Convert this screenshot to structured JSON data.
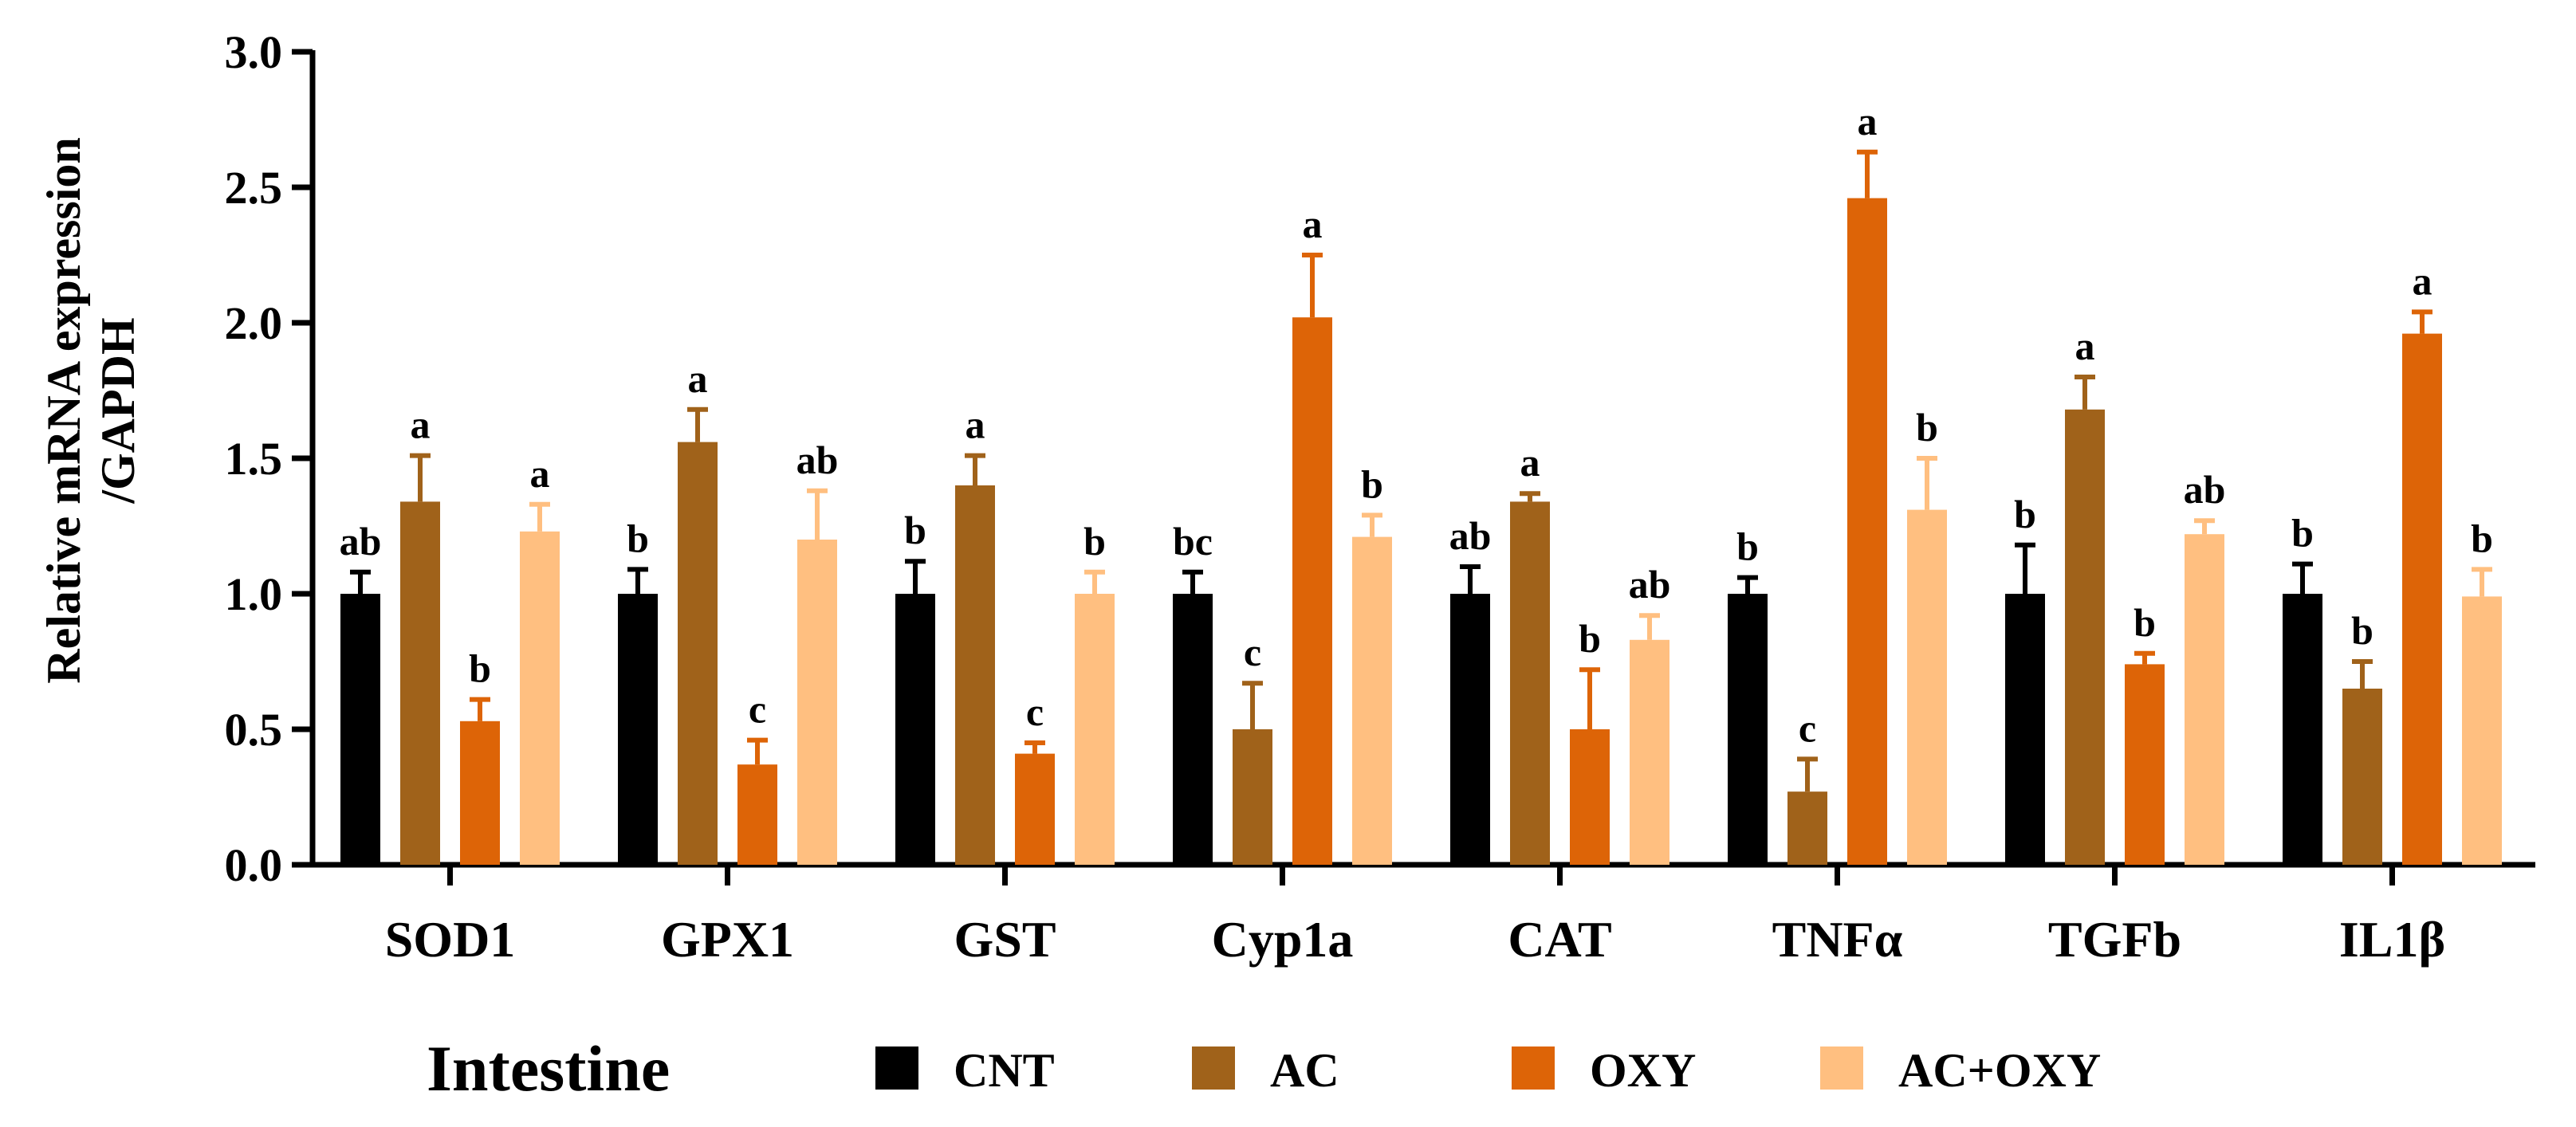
{
  "chart_data": {
    "type": "bar",
    "title": "",
    "ylabel_lines": [
      "Relative mRNA expression",
      "/GAPDH"
    ],
    "xlabel": "",
    "ylim": [
      0,
      3.0
    ],
    "yticks": [
      "0.0",
      "0.5",
      "1.0",
      "1.5",
      "2.0",
      "2.5",
      "3.0"
    ],
    "categories": [
      "SOD1",
      "GPX1",
      "GST",
      "Cyp1a",
      "CAT",
      "TNFα",
      "TGFb",
      "IL1β"
    ],
    "series": [
      {
        "name": "CNT",
        "color": "#000000",
        "values": [
          1.0,
          1.0,
          1.0,
          1.0,
          1.0,
          1.0,
          1.0,
          1.0
        ],
        "errors": [
          0.08,
          0.09,
          0.12,
          0.08,
          0.1,
          0.06,
          0.18,
          0.11
        ],
        "labels": [
          "ab",
          "b",
          "b",
          "bc",
          "ab",
          "b",
          "b",
          "b"
        ]
      },
      {
        "name": "AC",
        "color": "#a0621a",
        "values": [
          1.34,
          1.56,
          1.4,
          0.5,
          1.34,
          0.27,
          1.68,
          0.65
        ],
        "errors": [
          0.17,
          0.12,
          0.11,
          0.17,
          0.03,
          0.12,
          0.12,
          0.1
        ],
        "labels": [
          "a",
          "a",
          "a",
          "c",
          "a",
          "c",
          "a",
          "b"
        ]
      },
      {
        "name": "OXY",
        "color": "#dd6407",
        "values": [
          0.53,
          0.37,
          0.41,
          2.02,
          0.5,
          2.46,
          0.74,
          1.96
        ],
        "errors": [
          0.08,
          0.09,
          0.04,
          0.23,
          0.22,
          0.17,
          0.04,
          0.08
        ],
        "labels": [
          "b",
          "c",
          "c",
          "a",
          "b",
          "a",
          "b",
          "a"
        ]
      },
      {
        "name": "AC+OXY",
        "color": "#ffbf80",
        "values": [
          1.23,
          1.2,
          1.0,
          1.21,
          0.83,
          1.31,
          1.22,
          0.99
        ],
        "errors": [
          0.1,
          0.18,
          0.08,
          0.08,
          0.09,
          0.19,
          0.05,
          0.1
        ],
        "labels": [
          "a",
          "ab",
          "b",
          "b",
          "ab",
          "b",
          "ab",
          "b"
        ]
      }
    ],
    "legend_title": "Intestine",
    "legend_position": "bottom"
  }
}
